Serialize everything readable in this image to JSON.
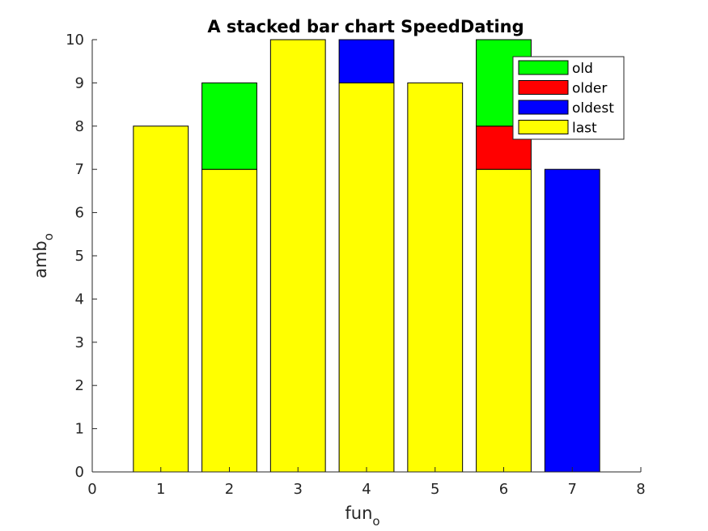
{
  "chart_data": {
    "type": "bar",
    "stacked": true,
    "title": "A stacked bar chart SpeedDating",
    "xlabel": "fun",
    "xlabel_sub": "o",
    "ylabel": "amb",
    "ylabel_sub": "o",
    "xlim": [
      0,
      8
    ],
    "ylim": [
      0,
      10
    ],
    "xticks": [
      "0",
      "1",
      "2",
      "3",
      "4",
      "5",
      "6",
      "7",
      "8"
    ],
    "yticks": [
      "0",
      "1",
      "2",
      "3",
      "4",
      "5",
      "6",
      "7",
      "8",
      "9",
      "10"
    ],
    "x": [
      1,
      2,
      3,
      4,
      5,
      6,
      7
    ],
    "series": [
      {
        "name": "last",
        "color": "#ffff00",
        "values": [
          8,
          7,
          10,
          9,
          9,
          7,
          0
        ]
      },
      {
        "name": "oldest",
        "color": "#0000ff",
        "values": [
          0,
          0,
          0,
          1,
          0,
          0,
          7
        ]
      },
      {
        "name": "older",
        "color": "#ff0000",
        "values": [
          0,
          0,
          0,
          0,
          0,
          1,
          0
        ]
      },
      {
        "name": "old",
        "color": "#00ff00",
        "values": [
          0,
          2,
          0,
          0,
          0,
          2,
          0
        ]
      }
    ],
    "legend_order": [
      "old",
      "older",
      "oldest",
      "last"
    ],
    "legend_position": "top-right",
    "grid": false
  }
}
